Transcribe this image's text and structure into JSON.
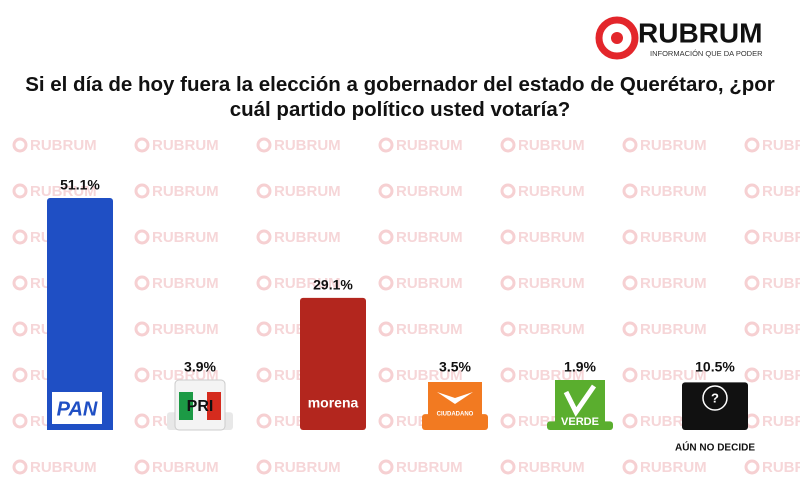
{
  "brand": {
    "name": "RUBRUM",
    "tagline": "INFORMACIÓN QUE DA PODER"
  },
  "chart_data": {
    "type": "bar",
    "title": "Si el día de hoy fuera la elección a gobernador del estado de Querétaro, ¿por cuál partido político usted votaría?",
    "categories": [
      "PAN",
      "PRI",
      "morena",
      "CIUDADANO",
      "VERDE",
      "AÚN NO DECIDE"
    ],
    "values": [
      51.1,
      3.9,
      29.1,
      3.5,
      1.9,
      10.5
    ],
    "value_labels": [
      "51.1%",
      "3.9%",
      "29.1%",
      "3.5%",
      "1.9%",
      "10.5%"
    ],
    "colors": [
      "#1f4fc4",
      "#e8e8e8",
      "#b3261e",
      "#f27a21",
      "#5aae2e",
      "#111111"
    ]
  }
}
